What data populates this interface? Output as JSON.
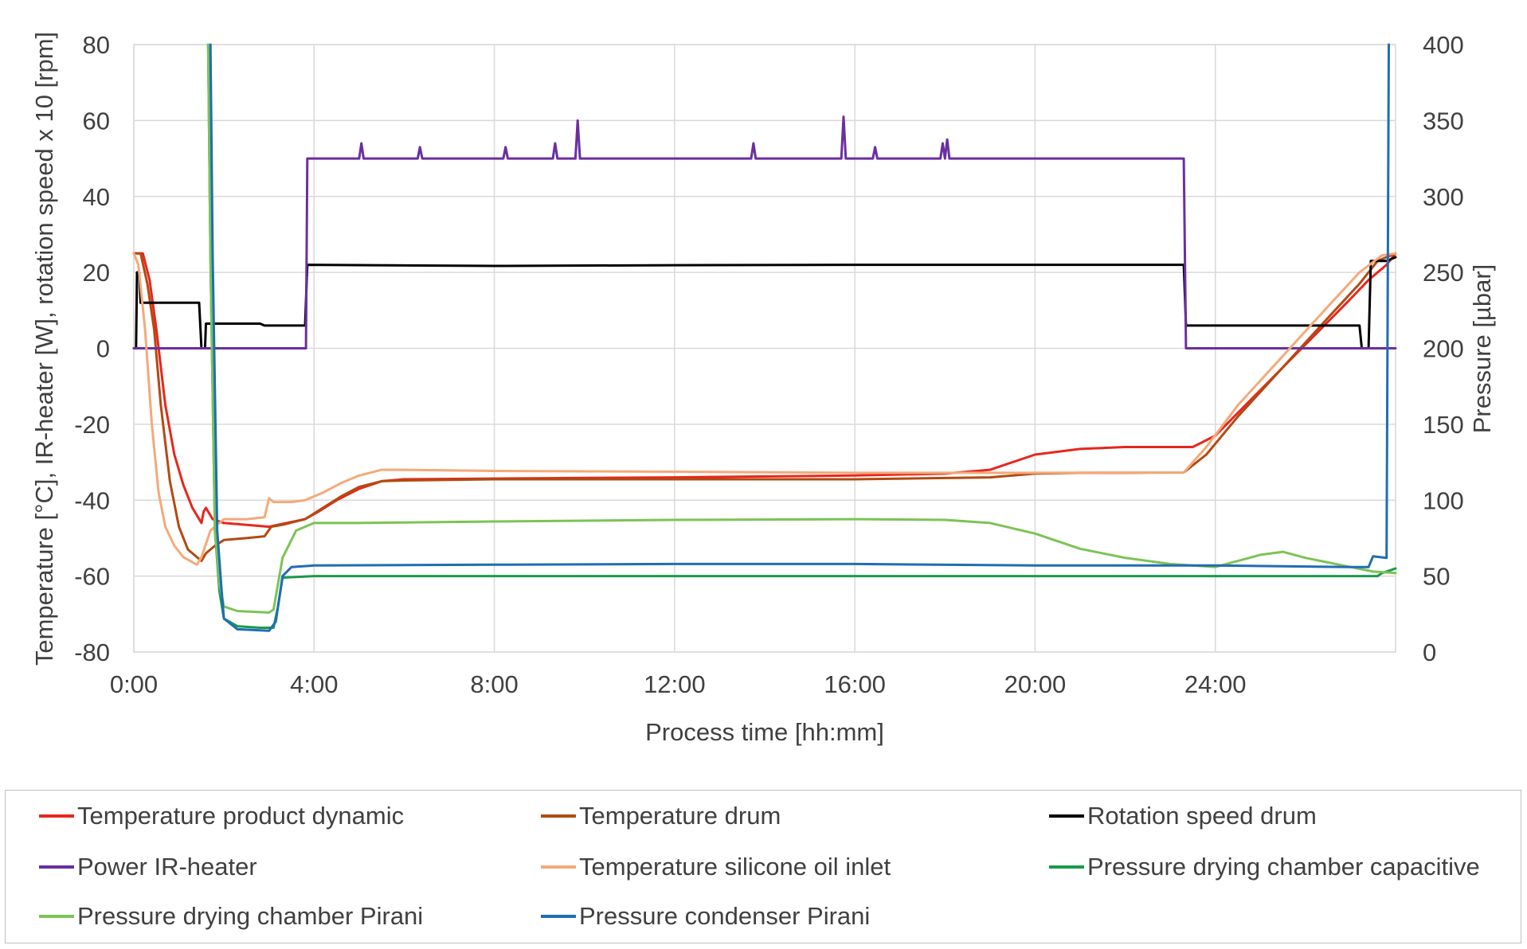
{
  "chart_data": {
    "type": "line",
    "xlabel": "Process time [hh:mm]",
    "ylabel": "Temperature [°C], IR-heater [W], rotation speed x 10 [rpm]",
    "y2label": "Pressure [µbar]",
    "x_unit": "hours",
    "xlim": [
      0,
      28
    ],
    "ylim": [
      -80,
      80
    ],
    "y2lim": [
      0,
      400
    ],
    "x_ticks": [
      {
        "value": 0,
        "label": "0:00"
      },
      {
        "value": 4,
        "label": "4:00"
      },
      {
        "value": 8,
        "label": "8:00"
      },
      {
        "value": 12,
        "label": "12:00"
      },
      {
        "value": 16,
        "label": "16:00"
      },
      {
        "value": 20,
        "label": "20:00"
      },
      {
        "value": 24,
        "label": "24:00"
      }
    ],
    "y_ticks": [
      80,
      60,
      40,
      20,
      0,
      -20,
      -40,
      -60,
      -80
    ],
    "y2_ticks": [
      400,
      350,
      300,
      250,
      200,
      150,
      100,
      50,
      0
    ],
    "grid": true,
    "legend_position": "bottom",
    "series": [
      {
        "name": "Temperature product dynamic",
        "axis": "left",
        "color": "#e8261c",
        "points": [
          [
            0,
            25
          ],
          [
            0.2,
            25
          ],
          [
            0.35,
            18
          ],
          [
            0.5,
            5
          ],
          [
            0.7,
            -15
          ],
          [
            0.9,
            -28
          ],
          [
            1.1,
            -36
          ],
          [
            1.3,
            -42
          ],
          [
            1.5,
            -46
          ],
          [
            1.55,
            -43
          ],
          [
            1.6,
            -42
          ],
          [
            1.75,
            -45
          ],
          [
            2.0,
            -46
          ],
          [
            2.5,
            -46.5
          ],
          [
            3.0,
            -47
          ],
          [
            3.2,
            -46.5
          ],
          [
            3.8,
            -45
          ],
          [
            4.1,
            -43
          ],
          [
            4.5,
            -40
          ],
          [
            5.0,
            -37
          ],
          [
            5.5,
            -35
          ],
          [
            6.0,
            -34.5
          ],
          [
            8,
            -34.3
          ],
          [
            12,
            -34
          ],
          [
            16,
            -33.5
          ],
          [
            18,
            -33
          ],
          [
            19,
            -32
          ],
          [
            20,
            -28
          ],
          [
            21,
            -26.5
          ],
          [
            22,
            -26
          ],
          [
            23,
            -26
          ],
          [
            23.5,
            -26
          ],
          [
            24,
            -23
          ],
          [
            25,
            -11
          ],
          [
            26,
            1
          ],
          [
            27,
            13
          ],
          [
            27.4,
            18
          ],
          [
            27.8,
            22
          ],
          [
            28,
            25
          ]
        ]
      },
      {
        "name": "Temperature drum",
        "axis": "left",
        "color": "#b34a12",
        "points": [
          [
            0,
            25
          ],
          [
            0.15,
            25
          ],
          [
            0.3,
            17
          ],
          [
            0.45,
            5
          ],
          [
            0.6,
            -15
          ],
          [
            0.8,
            -35
          ],
          [
            1.0,
            -47
          ],
          [
            1.2,
            -53
          ],
          [
            1.5,
            -56
          ],
          [
            1.6,
            -54
          ],
          [
            1.8,
            -52
          ],
          [
            2.0,
            -50.5
          ],
          [
            2.5,
            -50
          ],
          [
            2.9,
            -49.5
          ],
          [
            3.05,
            -47
          ],
          [
            3.3,
            -46.5
          ],
          [
            3.8,
            -45
          ],
          [
            4.2,
            -42
          ],
          [
            4.6,
            -39
          ],
          [
            5.0,
            -36.5
          ],
          [
            5.5,
            -35
          ],
          [
            6.0,
            -34.8
          ],
          [
            8,
            -34.5
          ],
          [
            12,
            -34.5
          ],
          [
            16,
            -34.5
          ],
          [
            19,
            -34
          ],
          [
            20,
            -33
          ],
          [
            21,
            -32.8
          ],
          [
            22,
            -32.8
          ],
          [
            23.3,
            -32.7
          ],
          [
            23.8,
            -28
          ],
          [
            24.5,
            -18
          ],
          [
            25.5,
            -5
          ],
          [
            26.5,
            8
          ],
          [
            27.2,
            17
          ],
          [
            27.6,
            23
          ],
          [
            28,
            25
          ]
        ]
      },
      {
        "name": "Rotation speed drum",
        "axis": "left",
        "color": "#000000",
        "points": [
          [
            0,
            0
          ],
          [
            0.05,
            0
          ],
          [
            0.07,
            20
          ],
          [
            0.12,
            20
          ],
          [
            0.15,
            12
          ],
          [
            1.4,
            12
          ],
          [
            1.45,
            12
          ],
          [
            1.5,
            0
          ],
          [
            1.58,
            0
          ],
          [
            1.6,
            6.5
          ],
          [
            2.8,
            6.5
          ],
          [
            2.9,
            6
          ],
          [
            3.8,
            6
          ],
          [
            3.85,
            22
          ],
          [
            8,
            21.7
          ],
          [
            12,
            21.9
          ],
          [
            16,
            22
          ],
          [
            20,
            22
          ],
          [
            23.3,
            22
          ],
          [
            23.35,
            6
          ],
          [
            27.2,
            6
          ],
          [
            27.25,
            0
          ],
          [
            27.4,
            0
          ],
          [
            27.45,
            23
          ],
          [
            27.8,
            23
          ],
          [
            28,
            24
          ]
        ]
      },
      {
        "name": "Power IR-heater",
        "axis": "left",
        "color": "#6a2fa0",
        "points": [
          [
            0,
            0
          ],
          [
            3.82,
            0
          ],
          [
            3.85,
            50
          ],
          [
            5,
            50
          ],
          [
            5.05,
            54
          ],
          [
            5.1,
            50
          ],
          [
            6.3,
            50
          ],
          [
            6.35,
            53
          ],
          [
            6.4,
            50
          ],
          [
            8.2,
            50
          ],
          [
            8.25,
            53
          ],
          [
            8.3,
            50
          ],
          [
            9.3,
            50
          ],
          [
            9.35,
            54
          ],
          [
            9.4,
            50
          ],
          [
            9.8,
            50
          ],
          [
            9.85,
            60
          ],
          [
            9.9,
            50
          ],
          [
            13.7,
            50
          ],
          [
            13.75,
            54
          ],
          [
            13.8,
            50
          ],
          [
            15.7,
            50
          ],
          [
            15.75,
            61
          ],
          [
            15.8,
            50
          ],
          [
            16.4,
            50
          ],
          [
            16.45,
            53
          ],
          [
            16.5,
            50
          ],
          [
            17.9,
            50
          ],
          [
            17.95,
            54
          ],
          [
            18.0,
            50
          ],
          [
            18.05,
            55
          ],
          [
            18.1,
            50
          ],
          [
            23.3,
            50
          ],
          [
            23.35,
            0
          ],
          [
            28,
            0
          ]
        ]
      },
      {
        "name": "Temperature silicone oil inlet",
        "axis": "left",
        "color": "#f4a97a",
        "points": [
          [
            0,
            25
          ],
          [
            0.1,
            22
          ],
          [
            0.25,
            5
          ],
          [
            0.4,
            -20
          ],
          [
            0.55,
            -38
          ],
          [
            0.7,
            -47
          ],
          [
            0.9,
            -52
          ],
          [
            1.1,
            -55
          ],
          [
            1.4,
            -57
          ],
          [
            1.5,
            -55
          ],
          [
            1.7,
            -48
          ],
          [
            2.0,
            -45
          ],
          [
            2.5,
            -45
          ],
          [
            2.9,
            -44.5
          ],
          [
            3.0,
            -39.5
          ],
          [
            3.1,
            -40.5
          ],
          [
            3.5,
            -40.5
          ],
          [
            3.8,
            -40
          ],
          [
            4.2,
            -38
          ],
          [
            4.6,
            -35.5
          ],
          [
            5.0,
            -33.5
          ],
          [
            5.5,
            -32
          ],
          [
            6.0,
            -32
          ],
          [
            8,
            -32.3
          ],
          [
            12,
            -32.5
          ],
          [
            16,
            -32.8
          ],
          [
            20,
            -32.8
          ],
          [
            23.3,
            -32.7
          ],
          [
            23.8,
            -26
          ],
          [
            24.5,
            -15
          ],
          [
            25.5,
            -2
          ],
          [
            26.5,
            11
          ],
          [
            27.2,
            20
          ],
          [
            27.7,
            24.5
          ],
          [
            28,
            25
          ]
        ]
      },
      {
        "name": "Pressure drying chamber capacitive",
        "axis": "right",
        "color": "#1a9a4a",
        "points": [
          [
            1.65,
            400
          ],
          [
            1.7,
            260
          ],
          [
            1.8,
            80
          ],
          [
            1.9,
            40
          ],
          [
            2.0,
            22
          ],
          [
            2.3,
            17
          ],
          [
            2.8,
            16
          ],
          [
            3.1,
            16
          ],
          [
            3.2,
            30
          ],
          [
            3.3,
            49
          ],
          [
            4,
            50
          ],
          [
            8,
            50
          ],
          [
            12,
            50
          ],
          [
            16,
            50
          ],
          [
            20,
            50
          ],
          [
            24,
            50
          ],
          [
            27,
            50
          ],
          [
            27.6,
            50
          ],
          [
            27.7,
            52
          ],
          [
            28,
            55
          ]
        ]
      },
      {
        "name": "Pressure drying chamber Pirani",
        "axis": "right",
        "color": "#7cc355",
        "points": [
          [
            1.65,
            400
          ],
          [
            1.7,
            260
          ],
          [
            1.8,
            80
          ],
          [
            1.9,
            45
          ],
          [
            2.0,
            30
          ],
          [
            2.3,
            27
          ],
          [
            3.0,
            26
          ],
          [
            3.1,
            28
          ],
          [
            3.3,
            62
          ],
          [
            3.6,
            80
          ],
          [
            4.0,
            85
          ],
          [
            5,
            85
          ],
          [
            8,
            86
          ],
          [
            12,
            87
          ],
          [
            16,
            87.5
          ],
          [
            18,
            87
          ],
          [
            19,
            85
          ],
          [
            20,
            78
          ],
          [
            21,
            68
          ],
          [
            22,
            62
          ],
          [
            23,
            58
          ],
          [
            24,
            56
          ],
          [
            25,
            64
          ],
          [
            25.5,
            66
          ],
          [
            26,
            62
          ],
          [
            27,
            56
          ],
          [
            27.5,
            53
          ],
          [
            28,
            52
          ]
        ]
      },
      {
        "name": "Pressure condenser Pirani",
        "axis": "right",
        "color": "#1f6db5",
        "points": [
          [
            1.7,
            400
          ],
          [
            1.75,
            260
          ],
          [
            1.85,
            80
          ],
          [
            1.95,
            40
          ],
          [
            2.0,
            22
          ],
          [
            2.3,
            15
          ],
          [
            3.0,
            14
          ],
          [
            3.15,
            20
          ],
          [
            3.3,
            50
          ],
          [
            3.5,
            56
          ],
          [
            4,
            57
          ],
          [
            8,
            57.5
          ],
          [
            12,
            58
          ],
          [
            16,
            58
          ],
          [
            20,
            57
          ],
          [
            24,
            57
          ],
          [
            27,
            56
          ],
          [
            27.4,
            56
          ],
          [
            27.5,
            63
          ],
          [
            27.8,
            62
          ],
          [
            27.85,
            400
          ]
        ]
      }
    ]
  }
}
